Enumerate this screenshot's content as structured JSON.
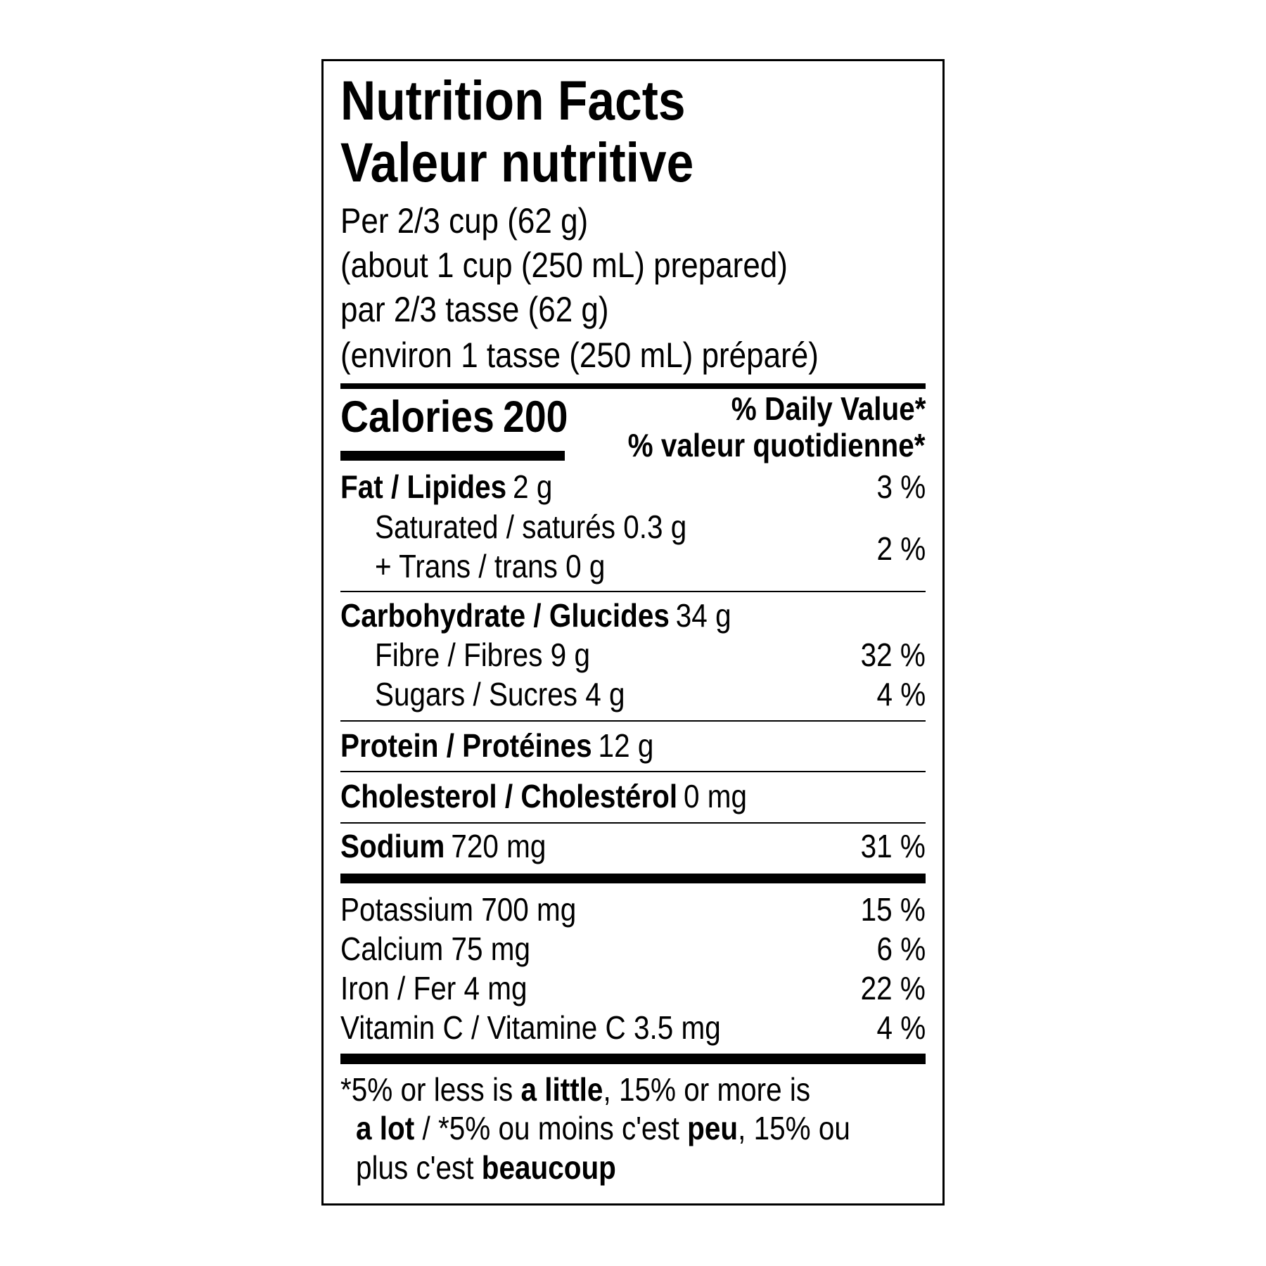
{
  "title": [
    "Nutrition Facts",
    "Valeur nutritive"
  ],
  "serving": [
    "Per 2/3 cup (62 g)",
    "(about 1 cup (250 mL) prepared)",
    "par 2/3 tasse (62 g)",
    "(environ 1 tasse (250 mL) préparé)"
  ],
  "calories": {
    "label": "Calories",
    "value": 200
  },
  "daily_value_header": [
    "% Daily Value*",
    "% valeur quotidienne*"
  ],
  "fat": {
    "name": "Fat / Lipides",
    "amount": "2 g",
    "daily_value": "3 %"
  },
  "saturated_trans": {
    "lines": [
      "Saturated / saturés 0.3 g",
      "+ Trans / trans 0 g"
    ],
    "daily_value": "2 %"
  },
  "carbohydrate": {
    "name": "Carbohydrate / Glucides",
    "amount": "34 g"
  },
  "fibre": {
    "label": "Fibre / Fibres 9 g",
    "daily_value": "32 %"
  },
  "sugars": {
    "label": "Sugars / Sucres 4 g",
    "daily_value": "4 %"
  },
  "protein": {
    "name": "Protein / Protéines",
    "amount": "12 g"
  },
  "cholesterol": {
    "name": "Cholesterol / Cholestérol",
    "amount": "0 mg"
  },
  "sodium": {
    "name": "Sodium",
    "amount": "720 mg",
    "daily_value": "31 %"
  },
  "minerals": [
    {
      "label": "Potassium 700 mg",
      "daily_value": "15 %"
    },
    {
      "label": "Calcium 75 mg",
      "daily_value": "6 %"
    },
    {
      "label": "Iron / Fer 4 mg",
      "daily_value": "22 %"
    },
    {
      "label": "Vitamin C / Vitamine C 3.5 mg",
      "daily_value": "4 %"
    }
  ],
  "footnote": [
    [
      {
        "text": "*5% or less is ",
        "bold": false
      },
      {
        "text": "a little",
        "bold": true
      },
      {
        "text": ", 15% or more is",
        "bold": false
      }
    ],
    [
      {
        "text": "a lot",
        "bold": true
      },
      {
        "text": " / *5% ou moins c'est ",
        "bold": false
      },
      {
        "text": "peu",
        "bold": true
      },
      {
        "text": ", 15% ou",
        "bold": false
      }
    ],
    [
      {
        "text": "plus c'est ",
        "bold": false
      },
      {
        "text": "beaucoup",
        "bold": true
      }
    ]
  ]
}
